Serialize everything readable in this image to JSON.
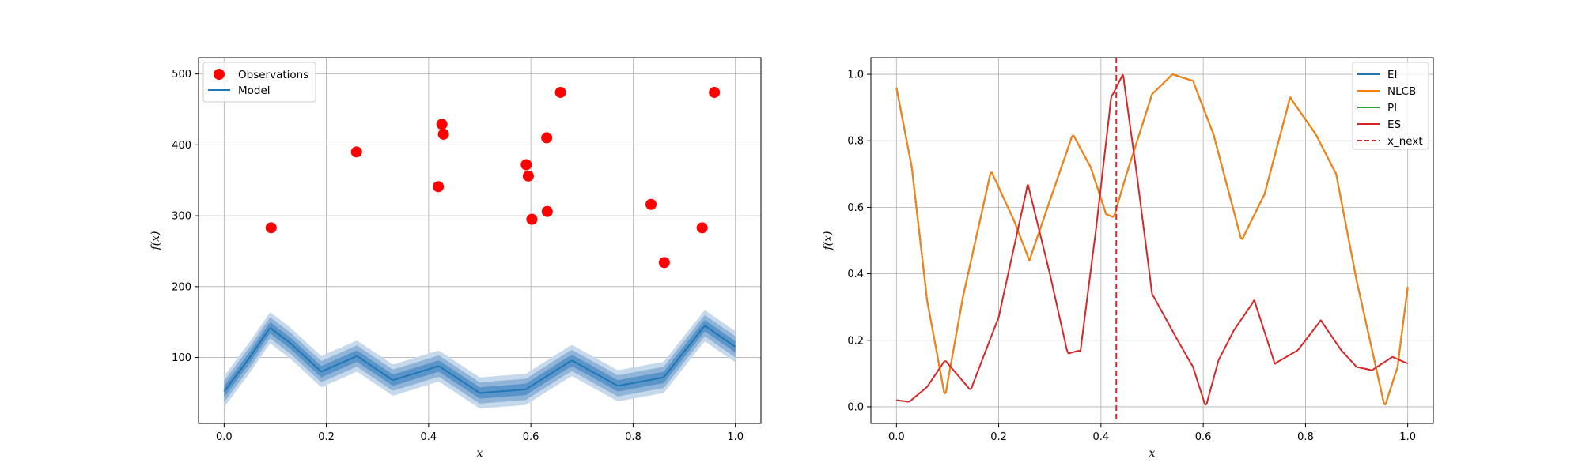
{
  "colors": {
    "observation": "#ff0000",
    "model": "#1f77b4",
    "band_outer": "#c6d9ec",
    "band_mid": "#8fb4d8",
    "band_inner": "#5b94c8",
    "ei": "#1f77b4",
    "nlcb": "#ff7f0e",
    "pi": "#2ca02c",
    "es": "#d62728",
    "x_next": "#d62728",
    "grid": "#b0b0b0"
  },
  "chart_data": [
    {
      "type": "scatter",
      "xlabel": "x",
      "ylabel": "f(x)",
      "xlim": [
        -0.05,
        1.05
      ],
      "ylim": [
        7,
        523
      ],
      "xticks": [
        0.0,
        0.2,
        0.4,
        0.6,
        0.8,
        1.0
      ],
      "xtick_labels": [
        "0.0",
        "0.2",
        "0.4",
        "0.6",
        "0.8",
        "1.0"
      ],
      "yticks": [
        100,
        200,
        300,
        400,
        500
      ],
      "ytick_labels": [
        "100",
        "200",
        "300",
        "400",
        "500"
      ],
      "grid": true,
      "legend_position": "upper-left",
      "legend": [
        {
          "label": "Observations",
          "kind": "marker",
          "color": "#ff0000"
        },
        {
          "label": "Model",
          "kind": "line",
          "color": "#1f77b4"
        }
      ],
      "observations": {
        "name": "Observations",
        "x": [
          0.092,
          0.259,
          0.419,
          0.426,
          0.429,
          0.591,
          0.595,
          0.602,
          0.631,
          0.632,
          0.658,
          0.835,
          0.861,
          0.935,
          0.959
        ],
        "y": [
          283,
          390,
          341,
          429,
          415,
          372,
          356,
          295,
          410,
          306,
          474,
          316,
          234,
          283,
          474
        ]
      },
      "model": {
        "name": "Model",
        "x": [
          0.0,
          0.05,
          0.09,
          0.13,
          0.19,
          0.26,
          0.33,
          0.42,
          0.5,
          0.59,
          0.68,
          0.77,
          0.86,
          0.94,
          1.0
        ],
        "mean": [
          52,
          100,
          142,
          120,
          80,
          102,
          68,
          88,
          50,
          55,
          96,
          60,
          72,
          145,
          115
        ],
        "bands": [
          8,
          15,
          22
        ]
      }
    },
    {
      "type": "line",
      "xlabel": "x",
      "ylabel": "f(x)",
      "xlim": [
        -0.05,
        1.05
      ],
      "ylim": [
        -0.05,
        1.05
      ],
      "xticks": [
        0.0,
        0.2,
        0.4,
        0.6,
        0.8,
        1.0
      ],
      "xtick_labels": [
        "0.0",
        "0.2",
        "0.4",
        "0.6",
        "0.8",
        "1.0"
      ],
      "yticks": [
        0.0,
        0.2,
        0.4,
        0.6,
        0.8,
        1.0
      ],
      "ytick_labels": [
        "0.0",
        "0.2",
        "0.4",
        "0.6",
        "0.8",
        "1.0"
      ],
      "grid": true,
      "legend_position": "upper-right",
      "legend": [
        {
          "label": "EI",
          "kind": "line",
          "color": "#1f77b4"
        },
        {
          "label": "NLCB",
          "kind": "line",
          "color": "#ff7f0e"
        },
        {
          "label": "PI",
          "kind": "line",
          "color": "#2ca02c"
        },
        {
          "label": "ES",
          "kind": "line",
          "color": "#d62728"
        },
        {
          "label": "x_next",
          "kind": "dashed",
          "color": "#d62728"
        }
      ],
      "x_next": 0.43,
      "series": [
        {
          "name": "NLCB",
          "x": [
            0.0,
            0.03,
            0.06,
            0.095,
            0.13,
            0.185,
            0.23,
            0.26,
            0.3,
            0.345,
            0.38,
            0.41,
            0.425,
            0.45,
            0.5,
            0.54,
            0.58,
            0.62,
            0.675,
            0.72,
            0.77,
            0.82,
            0.86,
            0.9,
            0.955,
            0.98,
            1.0
          ],
          "y": [
            0.96,
            0.72,
            0.32,
            0.03,
            0.33,
            0.71,
            0.56,
            0.44,
            0.62,
            0.82,
            0.72,
            0.58,
            0.57,
            0.7,
            0.94,
            1.0,
            0.98,
            0.82,
            0.5,
            0.64,
            0.93,
            0.82,
            0.7,
            0.38,
            0.0,
            0.12,
            0.36
          ]
        },
        {
          "name": "ES",
          "x": [
            0.0,
            0.025,
            0.06,
            0.095,
            0.145,
            0.2,
            0.257,
            0.3,
            0.335,
            0.36,
            0.39,
            0.42,
            0.443,
            0.47,
            0.5,
            0.55,
            0.58,
            0.605,
            0.63,
            0.66,
            0.7,
            0.74,
            0.785,
            0.83,
            0.87,
            0.9,
            0.93,
            0.97,
            1.0
          ],
          "y": [
            0.02,
            0.015,
            0.06,
            0.14,
            0.05,
            0.27,
            0.67,
            0.4,
            0.16,
            0.17,
            0.53,
            0.93,
            1.0,
            0.7,
            0.34,
            0.2,
            0.12,
            0.0,
            0.14,
            0.23,
            0.32,
            0.13,
            0.17,
            0.26,
            0.17,
            0.12,
            0.11,
            0.15,
            0.13
          ]
        }
      ]
    }
  ]
}
